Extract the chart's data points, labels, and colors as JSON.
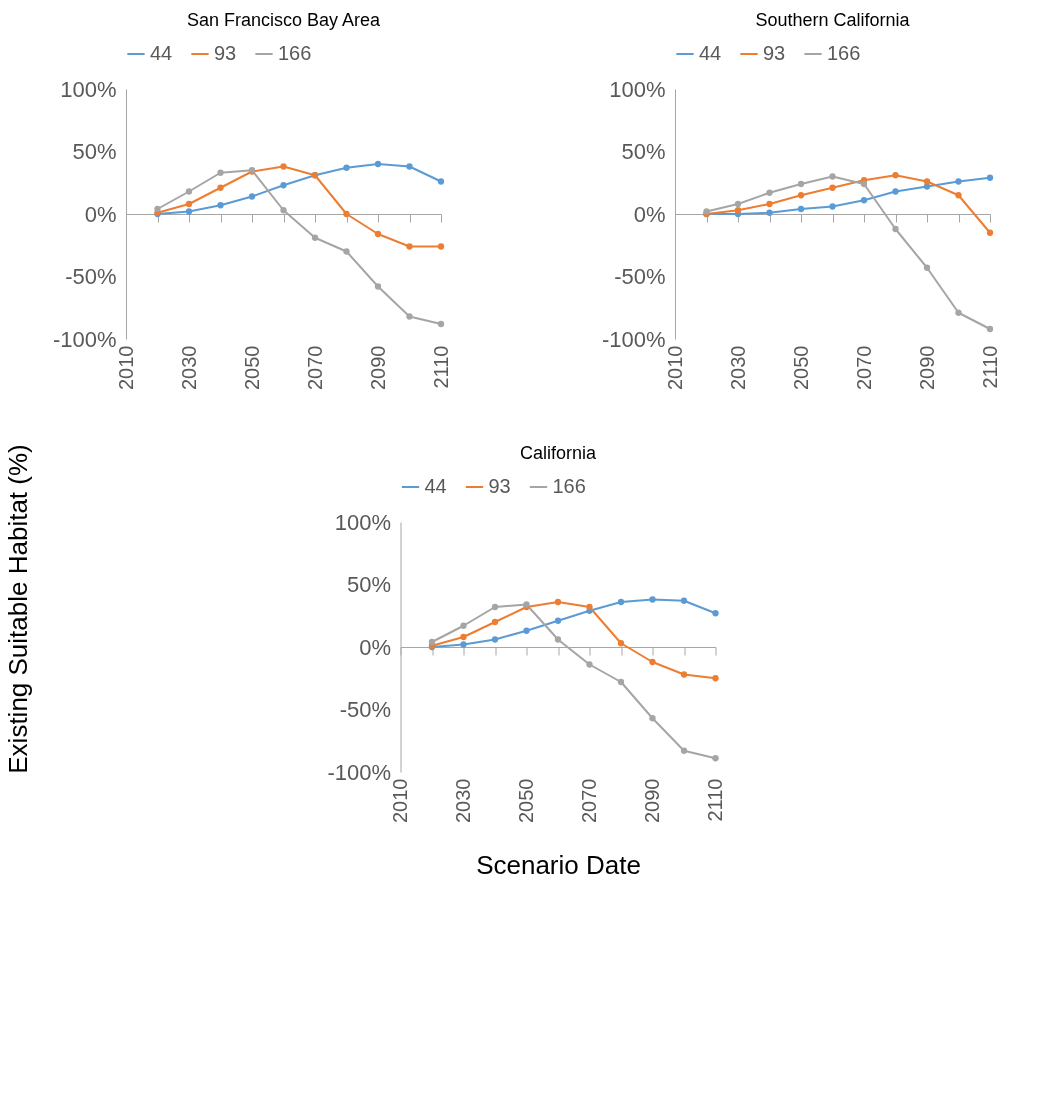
{
  "chart_data": [
    {
      "type": "line",
      "title": "San Francisco Bay Area",
      "ylabel": "Existing Suitable Habitat (%)",
      "legend": "top",
      "marker": "circle",
      "line_style": "solid",
      "x": [
        2020,
        2030,
        2040,
        2050,
        2060,
        2070,
        2080,
        2090,
        2100,
        2110
      ],
      "xlim": [
        2010,
        2110
      ],
      "xticks": [
        2010,
        {
          "value": 2020,
          "label": null
        },
        2030,
        {
          "value": 2040,
          "label": null
        },
        2050,
        {
          "value": 2060,
          "label": null
        },
        2070,
        {
          "value": 2080,
          "label": null
        },
        2090,
        {
          "value": 2100,
          "label": null
        },
        2110
      ],
      "ylim": [
        -100,
        100
      ],
      "yticks": [
        {
          "value": -100,
          "label": "-100%"
        },
        {
          "value": -50,
          "label": "-50%"
        },
        {
          "value": 0,
          "label": "0%"
        },
        {
          "value": 50,
          "label": "50%"
        },
        {
          "value": 100,
          "label": "100%"
        }
      ],
      "series": [
        {
          "name": "44",
          "color": "#5b9bd5",
          "values": [
            0,
            2,
            7,
            14,
            23,
            31,
            37,
            40,
            38,
            26
          ]
        },
        {
          "name": "93",
          "color": "#ed7d31",
          "values": [
            1,
            8,
            21,
            34,
            38,
            31,
            0,
            -16,
            -26,
            -26
          ]
        },
        {
          "name": "166",
          "color": "#a5a5a5",
          "values": [
            4,
            18,
            33,
            35,
            3,
            -19,
            -30,
            -58,
            -82,
            -88
          ]
        }
      ]
    },
    {
      "type": "line",
      "title": "Southern California",
      "legend": "top",
      "marker": "circle",
      "line_style": "solid",
      "x": [
        2020,
        2030,
        2040,
        2050,
        2060,
        2070,
        2080,
        2090,
        2100,
        2110
      ],
      "xlim": [
        2010,
        2110
      ],
      "xticks": [
        2010,
        {
          "value": 2020,
          "label": null
        },
        2030,
        {
          "value": 2040,
          "label": null
        },
        2050,
        {
          "value": 2060,
          "label": null
        },
        2070,
        {
          "value": 2080,
          "label": null
        },
        2090,
        {
          "value": 2100,
          "label": null
        },
        2110
      ],
      "ylim": [
        -100,
        100
      ],
      "yticks": [
        {
          "value": -100,
          "label": "-100%"
        },
        {
          "value": -50,
          "label": "-50%"
        },
        {
          "value": 0,
          "label": "0%"
        },
        {
          "value": 50,
          "label": "50%"
        },
        {
          "value": 100,
          "label": "100%"
        }
      ],
      "series": [
        {
          "name": "44",
          "color": "#5b9bd5",
          "values": [
            0,
            0,
            1,
            4,
            6,
            11,
            18,
            22,
            26,
            29
          ]
        },
        {
          "name": "93",
          "color": "#ed7d31",
          "values": [
            0,
            3,
            8,
            15,
            21,
            27,
            31,
            26,
            15,
            -15
          ]
        },
        {
          "name": "166",
          "color": "#a5a5a5",
          "values": [
            2,
            8,
            17,
            24,
            30,
            24,
            -12,
            -43,
            -79,
            -92
          ]
        }
      ]
    },
    {
      "type": "line",
      "title": "California",
      "xlabel": "Scenario Date",
      "legend": "top",
      "marker": "circle",
      "line_style": "solid",
      "x": [
        2020,
        2030,
        2040,
        2050,
        2060,
        2070,
        2080,
        2090,
        2100,
        2110
      ],
      "xlim": [
        2010,
        2110
      ],
      "xticks": [
        2010,
        {
          "value": 2020,
          "label": null
        },
        2030,
        {
          "value": 2040,
          "label": null
        },
        2050,
        {
          "value": 2060,
          "label": null
        },
        2070,
        {
          "value": 2080,
          "label": null
        },
        2090,
        {
          "value": 2100,
          "label": null
        },
        2110
      ],
      "ylim": [
        -100,
        100
      ],
      "yticks": [
        {
          "value": -100,
          "label": "-100%"
        },
        {
          "value": -50,
          "label": "-50%"
        },
        {
          "value": 0,
          "label": "0%"
        },
        {
          "value": 50,
          "label": "50%"
        },
        {
          "value": 100,
          "label": "100%"
        }
      ],
      "series": [
        {
          "name": "44",
          "color": "#5b9bd5",
          "values": [
            0,
            2,
            6,
            13,
            21,
            29,
            36,
            38,
            37,
            27
          ]
        },
        {
          "name": "93",
          "color": "#ed7d31",
          "values": [
            1,
            8,
            20,
            32,
            36,
            32,
            3,
            -12,
            -22,
            -25
          ]
        },
        {
          "name": "166",
          "color": "#a5a5a5",
          "values": [
            4,
            17,
            32,
            34,
            6,
            -14,
            -28,
            -57,
            -83,
            -89
          ]
        }
      ]
    }
  ]
}
